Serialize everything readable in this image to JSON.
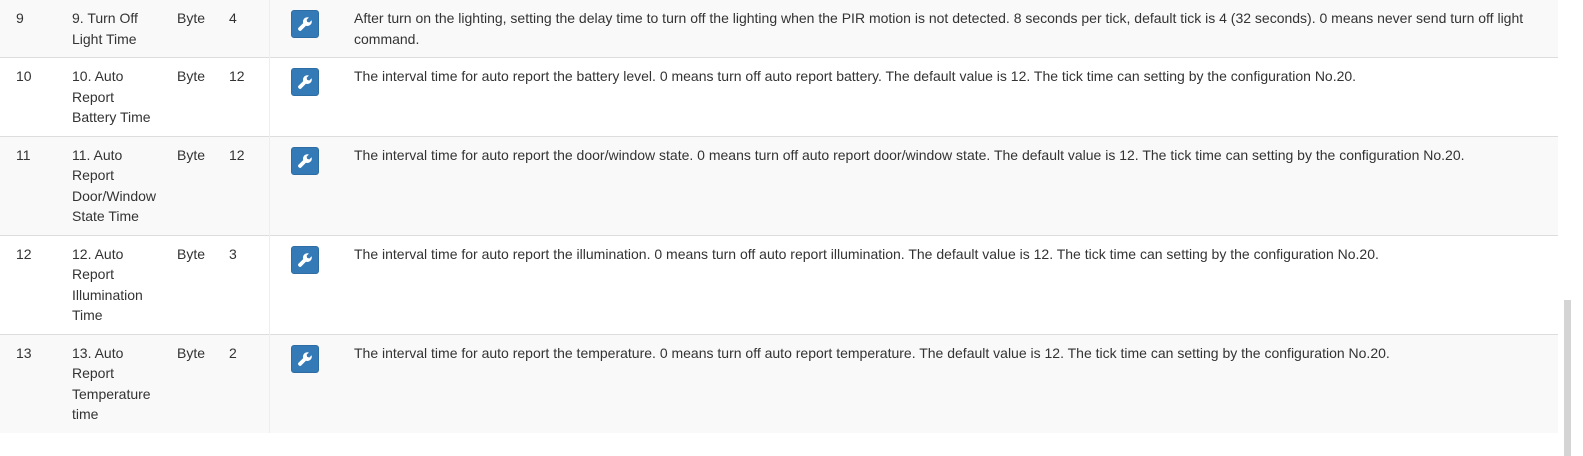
{
  "rows": [
    {
      "index": "9",
      "name": "9. Turn Off Light Time",
      "type": "Byte",
      "value": "4",
      "description": "After turn on the lighting, setting the delay time to turn off the lighting when the PIR motion is not detected. 8 seconds per tick, default tick is 4 (32 seconds). 0 means never send turn off light command."
    },
    {
      "index": "10",
      "name": "10. Auto Report Battery Time",
      "type": "Byte",
      "value": "12",
      "description": "The interval time for auto report the battery level. 0 means turn off auto report battery. The default value is 12. The tick time can setting by the configuration No.20."
    },
    {
      "index": "11",
      "name": "11. Auto Report Door/Window State Time",
      "type": "Byte",
      "value": "12",
      "description": "The interval time for auto report the door/window state. 0 means turn off auto report door/window state. The default value is 12. The tick time can setting by the configuration No.20."
    },
    {
      "index": "12",
      "name": "12. Auto Report Illumination Time",
      "type": "Byte",
      "value": "3",
      "description": "The interval time for auto report the illumination. 0 means turn off auto report illumination. The default value is 12. The tick time can setting by the configuration No.20."
    },
    {
      "index": "13",
      "name": "13. Auto Report Temperature time",
      "type": "Byte",
      "value": "2",
      "description": "The interval time for auto report the temperature. 0 means turn off auto report temperature. The default value is 12. The tick time can setting by the configuration No.20."
    }
  ],
  "edit_icon": "wrench-icon",
  "colors": {
    "button": "#337ab7",
    "stripe": "#f9f9f9",
    "border": "#dddddd",
    "text": "#333333"
  }
}
